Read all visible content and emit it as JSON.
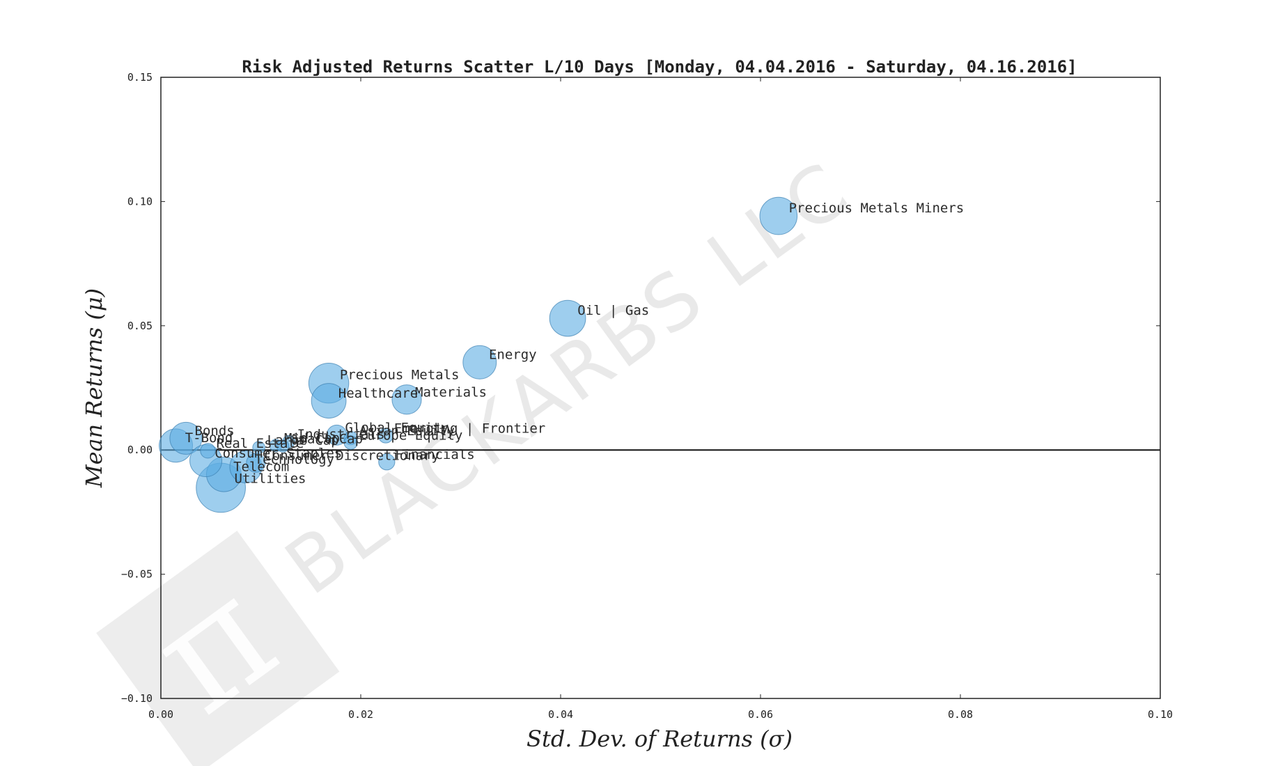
{
  "chart_data": {
    "type": "scatter",
    "title": "Risk Adjusted Returns Scatter L/10 Days [Monday, 04.04.2016 - Saturday, 04.16.2016]",
    "xlabel": "Std.  Dev.  of  Returns   (σ)",
    "ylabel": "Mean  Returns   (μ)",
    "xlim": [
      0.0,
      0.1
    ],
    "ylim": [
      -0.1,
      0.15
    ],
    "x_ticks": [
      "0.00",
      "0.02",
      "0.04",
      "0.06",
      "0.08",
      "0.10"
    ],
    "y_ticks": [
      "0.15",
      "0.10",
      "0.05",
      "0.00",
      "−0.05",
      "−0.10"
    ],
    "grid": false,
    "zero_line": true,
    "point_color": "#5dade2",
    "point_edge_color": "#3b7fb0",
    "points": [
      {
        "label": "Precious Metals Miners",
        "x": 0.0618,
        "y": 0.0942,
        "size": 2.4
      },
      {
        "label": "Oil | Gas",
        "x": 0.0407,
        "y": 0.053,
        "size": 2.3
      },
      {
        "label": "Energy",
        "x": 0.0319,
        "y": 0.0353,
        "size": 2.1
      },
      {
        "label": "Precious Metals",
        "x": 0.0168,
        "y": 0.0269,
        "size": 2.6
      },
      {
        "label": "Healthcare",
        "x": 0.0168,
        "y": 0.0198,
        "size": 2.2
      },
      {
        "label": "Materials",
        "x": 0.0246,
        "y": 0.0203,
        "size": 1.8
      },
      {
        "label": "Global Equity",
        "x": 0.0176,
        "y": 0.006,
        "size": 1.1
      },
      {
        "label": "Asian Equity",
        "x": 0.019,
        "y": 0.0048,
        "size": 0.6
      },
      {
        "label": "Emerging | Frontier",
        "x": 0.0225,
        "y": 0.0058,
        "size": 0.7
      },
      {
        "label": "Europe Equity",
        "x": 0.019,
        "y": 0.003,
        "size": 0.6
      },
      {
        "label": "Industrials",
        "x": 0.0128,
        "y": 0.0034,
        "size": 0.5
      },
      {
        "label": "Mid Cap",
        "x": 0.0115,
        "y": 0.0018,
        "size": 0.5
      },
      {
        "label": "Small Cap",
        "x": 0.0122,
        "y": 0.0016,
        "size": 0.5
      },
      {
        "label": "Large Cap",
        "x": 0.0098,
        "y": 0.001,
        "size": 0.5
      },
      {
        "label": "Real Estate",
        "x": 0.0047,
        "y": -0.0003,
        "size": 0.7
      },
      {
        "label": "Bonds",
        "x": 0.0025,
        "y": 0.0047,
        "size": 2.0
      },
      {
        "label": "T-Bond",
        "x": 0.0015,
        "y": 0.0018,
        "size": 2.1
      },
      {
        "label": "Consumer Staples",
        "x": 0.0045,
        "y": -0.0043,
        "size": 2.0
      },
      {
        "label": "Financials",
        "x": 0.0226,
        "y": -0.0048,
        "size": 0.8
      },
      {
        "label": "Technology",
        "x": 0.0085,
        "y": -0.0068,
        "size": 2.0
      },
      {
        "label": "Consumer Discretionary",
        "x": 0.0095,
        "y": -0.0052,
        "size": 1.0
      },
      {
        "label": "Telecom",
        "x": 0.0063,
        "y": -0.0098,
        "size": 2.2
      },
      {
        "label": "Utilities",
        "x": 0.006,
        "y": -0.0152,
        "size": 3.3
      }
    ]
  },
  "watermark": {
    "text": "BLACKARBS LLC",
    "logo_glyph": "π"
  }
}
